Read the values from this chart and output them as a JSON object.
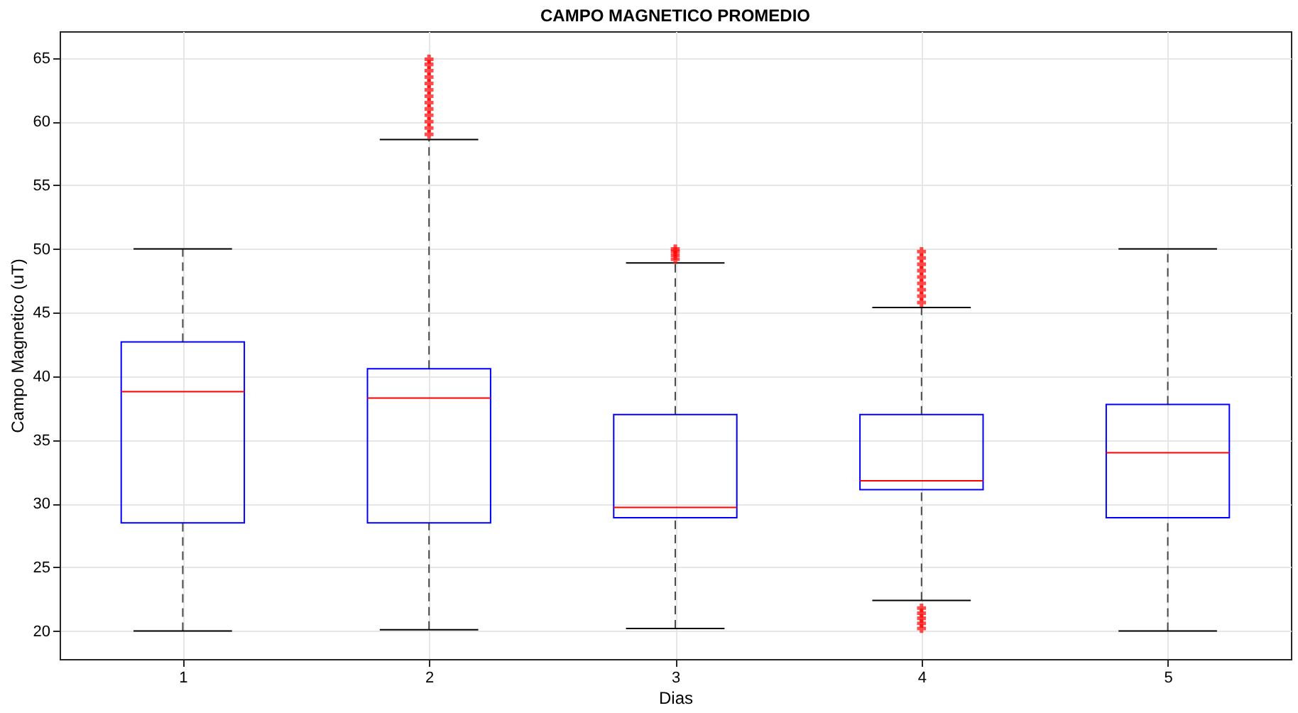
{
  "chart_data": {
    "type": "box",
    "title": "CAMPO MAGNETICO PROMEDIO",
    "xlabel": "Dias",
    "ylabel": "Campo Magnetico (uT)",
    "categories": [
      "1",
      "2",
      "3",
      "4",
      "5"
    ],
    "boxes": [
      {
        "low": 20,
        "q1": 28.5,
        "median": 38.8,
        "q3": 42.7,
        "high": 50
      },
      {
        "low": 20.1,
        "q1": 28.5,
        "median": 38.3,
        "q3": 40.6,
        "high": 58.6,
        "outliers": [
          59.0,
          59.5,
          60.0,
          60.5,
          61.0,
          61.5,
          62.0,
          62.5,
          63.0,
          63.5,
          64.0,
          64.5,
          64.9
        ]
      },
      {
        "low": 20.2,
        "q1": 28.9,
        "median": 29.7,
        "q3": 37.0,
        "high": 48.9,
        "outliers": [
          49.2,
          49.5,
          49.8,
          50.0
        ]
      },
      {
        "low": 22.4,
        "q1": 31.1,
        "median": 31.8,
        "q3": 37.0,
        "high": 45.4,
        "outliers": [
          45.8,
          46.3,
          46.8,
          47.3,
          47.8,
          48.3,
          48.8,
          49.3,
          49.8,
          20.2,
          20.6,
          21.0,
          21.4,
          21.8
        ]
      },
      {
        "low": 20,
        "q1": 28.9,
        "median": 34.0,
        "q3": 37.8,
        "high": 50
      }
    ],
    "color": "#0000ff",
    "ylim": [
      17.8,
      67.1
    ],
    "yticks": [
      20,
      25,
      30,
      35,
      40,
      45,
      50,
      55,
      60,
      65
    ],
    "grid": true
  }
}
